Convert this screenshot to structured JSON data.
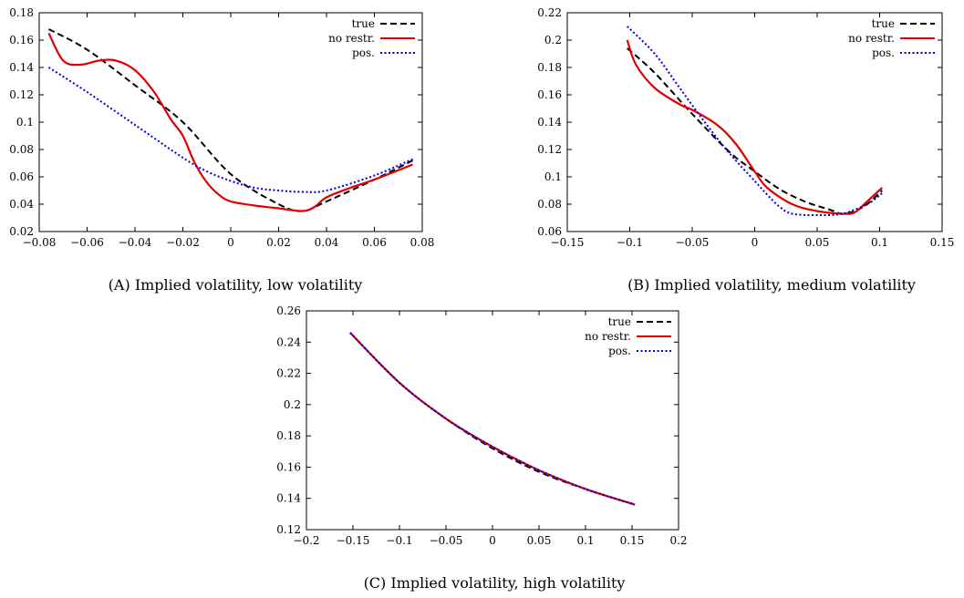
{
  "chart_data": [
    {
      "type": "line",
      "caption_tag": "(A)",
      "caption": "Implied volatility, low volatility",
      "xlim": [
        -0.08,
        0.08
      ],
      "ylim": [
        0.02,
        0.18
      ],
      "xticks": [
        -0.08,
        -0.06,
        -0.04,
        -0.02,
        0,
        0.02,
        0.04,
        0.06,
        0.08
      ],
      "xtick_labels": [
        "−0.08",
        "−0.06",
        "−0.04",
        "−0.02",
        "0",
        "0.02",
        "0.04",
        "0.06",
        "0.08"
      ],
      "yticks": [
        0.02,
        0.04,
        0.06,
        0.08,
        0.1,
        0.12,
        0.14,
        0.16,
        0.18
      ],
      "ytick_labels": [
        "0.02",
        "0.04",
        "0.06",
        "0.08",
        "0.1",
        "0.12",
        "0.14",
        "0.16",
        "0.18"
      ],
      "legend_position": "top-right",
      "series": [
        {
          "name": "true",
          "color": "#000000",
          "dash": "dashed",
          "x": [
            -0.076,
            -0.06,
            -0.04,
            -0.02,
            0,
            0.02,
            0.03,
            0.04,
            0.06,
            0.076
          ],
          "y": [
            0.168,
            0.153,
            0.127,
            0.1,
            0.062,
            0.04,
            0.035,
            0.042,
            0.058,
            0.072
          ]
        },
        {
          "name": "no restr.",
          "color": "#e00000",
          "dash": "solid",
          "x": [
            -0.076,
            -0.07,
            -0.063,
            -0.055,
            -0.048,
            -0.04,
            -0.032,
            -0.025,
            -0.02,
            -0.015,
            -0.01,
            -0.005,
            0,
            0.01,
            0.02,
            0.03,
            0.035,
            0.04,
            0.05,
            0.06,
            0.076
          ],
          "y": [
            0.165,
            0.145,
            0.142,
            0.145,
            0.145,
            0.138,
            0.122,
            0.102,
            0.09,
            0.07,
            0.056,
            0.047,
            0.042,
            0.039,
            0.037,
            0.035,
            0.038,
            0.045,
            0.052,
            0.058,
            0.069
          ]
        },
        {
          "name": "pos.",
          "color": "#0000e0",
          "dash": "dotted",
          "x": [
            -0.076,
            -0.06,
            -0.04,
            -0.02,
            -0.01,
            0,
            0.01,
            0.02,
            0.03,
            0.04,
            0.06,
            0.076
          ],
          "y": [
            0.14,
            0.122,
            0.098,
            0.074,
            0.064,
            0.057,
            0.052,
            0.05,
            0.049,
            0.05,
            0.061,
            0.073
          ]
        }
      ]
    },
    {
      "type": "line",
      "caption_tag": "(B)",
      "caption": "Implied volatility, medium volatility",
      "xlim": [
        -0.15,
        0.15
      ],
      "ylim": [
        0.06,
        0.22
      ],
      "xticks": [
        -0.15,
        -0.1,
        -0.05,
        0,
        0.05,
        0.1,
        0.15
      ],
      "xtick_labels": [
        "−0.15",
        "−0.1",
        "−0.05",
        "0",
        "0.05",
        "0.1",
        "0.15"
      ],
      "yticks": [
        0.06,
        0.08,
        0.1,
        0.12,
        0.14,
        0.16,
        0.18,
        0.2,
        0.22
      ],
      "ytick_labels": [
        "0.06",
        "0.08",
        "0.1",
        "0.12",
        "0.14",
        "0.16",
        "0.18",
        "0.2",
        "0.22"
      ],
      "legend_position": "top-right",
      "series": [
        {
          "name": "true",
          "color": "#000000",
          "dash": "dashed",
          "x": [
            -0.102,
            -0.08,
            -0.05,
            -0.02,
            0,
            0.02,
            0.04,
            0.06,
            0.07,
            0.08,
            0.09,
            0.102
          ],
          "y": [
            0.194,
            0.176,
            0.146,
            0.118,
            0.104,
            0.091,
            0.082,
            0.076,
            0.073,
            0.075,
            0.08,
            0.09
          ]
        },
        {
          "name": "no restr.",
          "color": "#e00000",
          "dash": "solid",
          "x": [
            -0.102,
            -0.095,
            -0.08,
            -0.06,
            -0.05,
            -0.03,
            -0.015,
            0,
            0.01,
            0.03,
            0.05,
            0.07,
            0.08,
            0.09,
            0.102
          ],
          "y": [
            0.2,
            0.182,
            0.165,
            0.153,
            0.149,
            0.138,
            0.124,
            0.104,
            0.092,
            0.08,
            0.075,
            0.073,
            0.074,
            0.082,
            0.092
          ]
        },
        {
          "name": "pos.",
          "color": "#0000e0",
          "dash": "dotted",
          "x": [
            -0.102,
            -0.08,
            -0.06,
            -0.04,
            -0.02,
            0,
            0.01,
            0.02,
            0.03,
            0.05,
            0.07,
            0.09,
            0.102
          ],
          "y": [
            0.21,
            0.19,
            0.165,
            0.14,
            0.117,
            0.097,
            0.087,
            0.078,
            0.073,
            0.072,
            0.073,
            0.08,
            0.088
          ]
        }
      ]
    },
    {
      "type": "line",
      "caption_tag": "(C)",
      "caption": "Implied volatility, high volatility",
      "xlim": [
        -0.2,
        0.2
      ],
      "ylim": [
        0.12,
        0.26
      ],
      "xticks": [
        -0.2,
        -0.15,
        -0.1,
        -0.05,
        0,
        0.05,
        0.1,
        0.15,
        0.2
      ],
      "xtick_labels": [
        "−0.2",
        "−0.15",
        "−0.1",
        "−0.05",
        "0",
        "0.05",
        "0.1",
        "0.15",
        "0.2"
      ],
      "yticks": [
        0.12,
        0.14,
        0.16,
        0.18,
        0.2,
        0.22,
        0.24,
        0.26
      ],
      "ytick_labels": [
        "0.12",
        "0.14",
        "0.16",
        "0.18",
        "0.2",
        "0.22",
        "0.24",
        "0.26"
      ],
      "legend_position": "top-right",
      "series": [
        {
          "name": "true",
          "color": "#000000",
          "dash": "dashed",
          "x": [
            -0.153,
            -0.1,
            -0.05,
            0,
            0.05,
            0.1,
            0.153
          ],
          "y": [
            0.246,
            0.214,
            0.191,
            0.172,
            0.157,
            0.146,
            0.136
          ]
        },
        {
          "name": "no restr.",
          "color": "#e00000",
          "dash": "solid",
          "x": [
            -0.153,
            -0.1,
            -0.05,
            0,
            0.05,
            0.1,
            0.153
          ],
          "y": [
            0.246,
            0.214,
            0.191,
            0.173,
            0.158,
            0.146,
            0.136
          ]
        },
        {
          "name": "pos.",
          "color": "#0000e0",
          "dash": "dotted",
          "x": [
            -0.153,
            -0.1,
            -0.05,
            0,
            0.05,
            0.1,
            0.153
          ],
          "y": [
            0.246,
            0.214,
            0.191,
            0.173,
            0.158,
            0.146,
            0.136
          ]
        }
      ]
    }
  ]
}
